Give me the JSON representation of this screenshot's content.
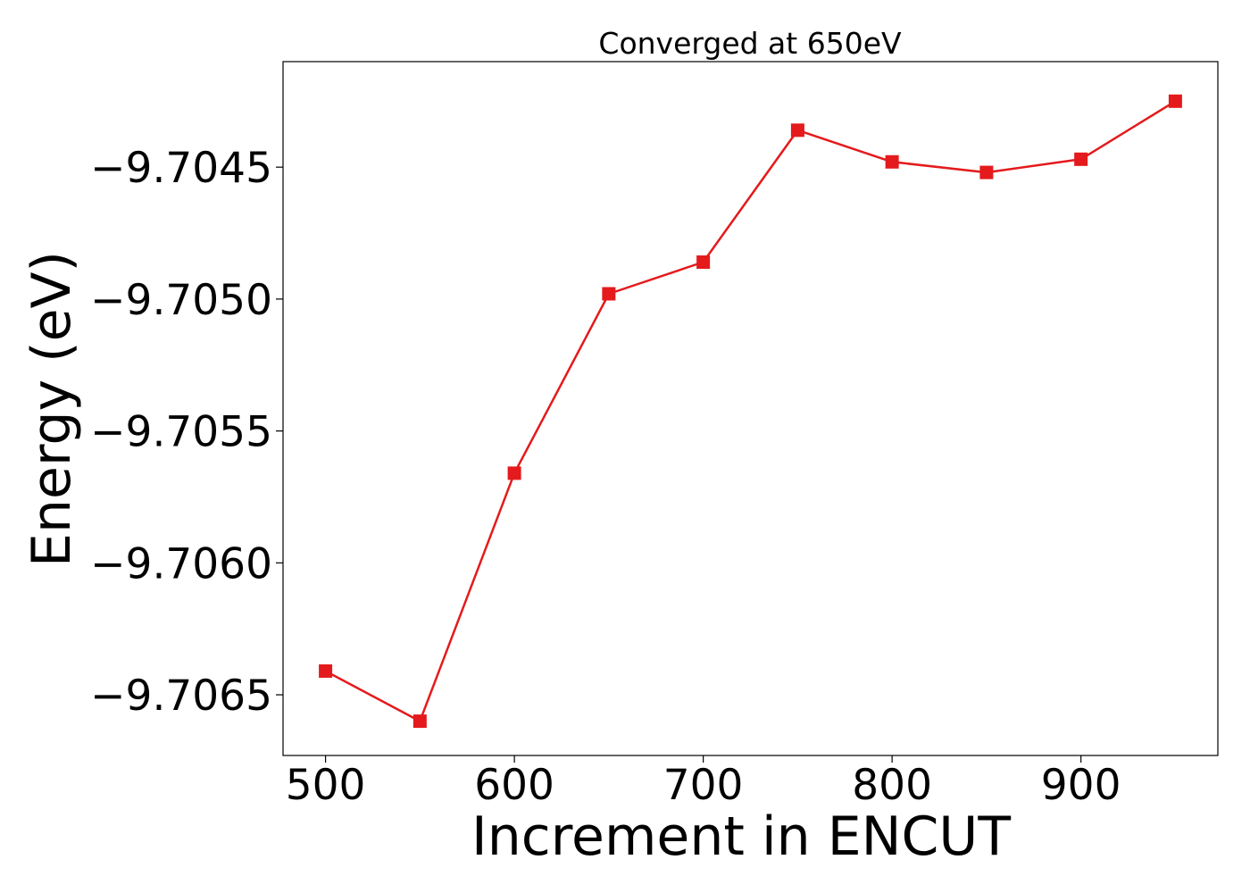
{
  "chart_data": {
    "type": "line",
    "title": "Converged at 650eV",
    "xlabel": "Increment in ENCUT",
    "ylabel": "Energy (eV)",
    "x": [
      500,
      550,
      600,
      650,
      700,
      750,
      800,
      850,
      900,
      950
    ],
    "series": [
      {
        "values": [
          -9.70641,
          -9.7066,
          -9.70566,
          -9.70498,
          -9.70486,
          -9.70436,
          -9.70448,
          -9.70452,
          -9.70447,
          -9.70425
        ],
        "color": "#e41a1c",
        "marker": "square"
      }
    ],
    "xlim": [
      477.5,
      972.5
    ],
    "ylim": [
      -9.70673,
      -9.7041
    ],
    "xticks": [
      500,
      600,
      700,
      800,
      900
    ],
    "xtick_labels": [
      "500",
      "600",
      "700",
      "800",
      "900"
    ],
    "yticks": [
      -9.7045,
      -9.705,
      -9.7055,
      -9.706,
      -9.7065
    ],
    "ytick_labels": [
      "−9.7045",
      "−9.7050",
      "−9.7055",
      "−9.7060",
      "−9.7065"
    ],
    "grid": false,
    "legend": "none"
  }
}
